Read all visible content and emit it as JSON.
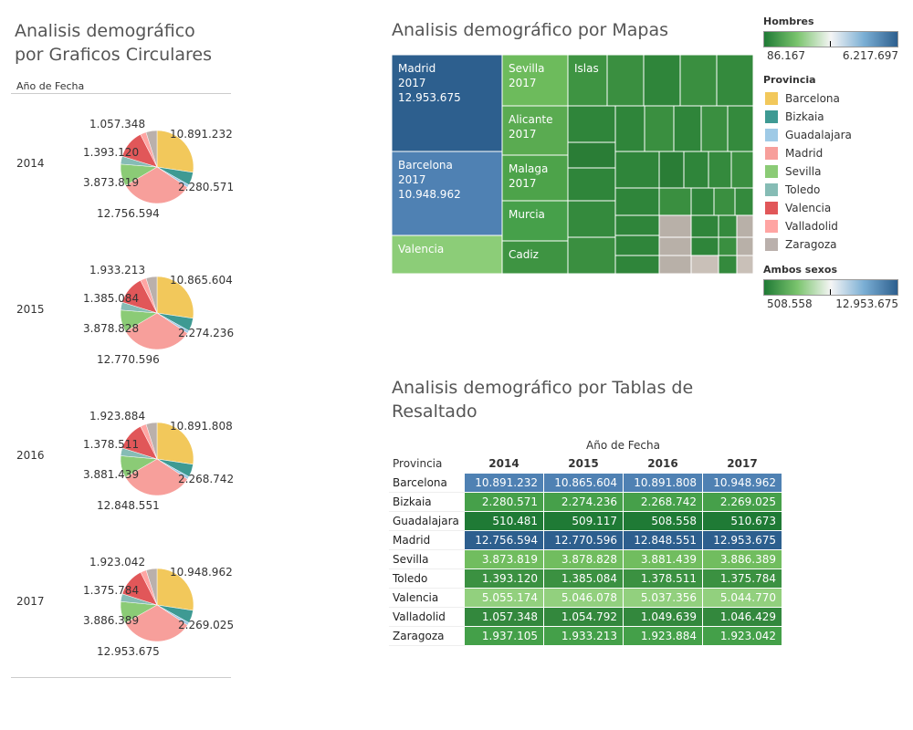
{
  "pie_panel": {
    "title_line1": "Analisis demográfico",
    "title_line2": "por Graficos Circulares",
    "header": "Año de Fecha"
  },
  "map_panel": {
    "title": "Analisis demográfico por Mapas"
  },
  "table_panel": {
    "title_line1": "Analisis demográfico por Tablas de",
    "title_line2": "Resaltado",
    "col_group_header": "Año de Fecha",
    "row_header": "Provincia"
  },
  "legend": {
    "hombres": {
      "title": "Hombres",
      "min": "86.167",
      "max": "6.217.697"
    },
    "provincia_title": "Provincia",
    "ambos": {
      "title": "Ambos sexos",
      "min": "508.558",
      "max": "12.953.675"
    },
    "categories": [
      {
        "name": "Barcelona",
        "color": "#f2c85b"
      },
      {
        "name": "Bizkaia",
        "color": "#3e9a93"
      },
      {
        "name": "Guadalajara",
        "color": "#9fcae6"
      },
      {
        "name": "Madrid",
        "color": "#f79f9b"
      },
      {
        "name": "Sevilla",
        "color": "#8bcb76"
      },
      {
        "name": "Toledo",
        "color": "#86bcb5"
      },
      {
        "name": "Valencia",
        "color": "#e15759"
      },
      {
        "name": "Valladolid",
        "color": "#ffa5a3"
      },
      {
        "name": "Zaragoza",
        "color": "#bab0ac"
      }
    ]
  },
  "chart_data": [
    {
      "type": "pie",
      "title": "Analisis demográfico por Graficos Circulares",
      "years": [
        "2014",
        "2015",
        "2016",
        "2017"
      ],
      "pies": [
        {
          "year": "2014",
          "slices": [
            {
              "name": "Barcelona",
              "value": 10891232
            },
            {
              "name": "Bizkaia",
              "value": 2280571
            },
            {
              "name": "Guadalajara",
              "value": 510481
            },
            {
              "name": "Madrid",
              "value": 12756594
            },
            {
              "name": "Sevilla",
              "value": 3873819
            },
            {
              "name": "Toledo",
              "value": 1393120
            },
            {
              "name": "Valencia",
              "value": 5055174
            },
            {
              "name": "Valladolid",
              "value": 1057348
            },
            {
              "name": "Zaragoza",
              "value": 1937105
            }
          ],
          "labels": {
            "Barcelona": "10.891.232",
            "Bizkaia": "2.280.571",
            "Madrid": "12.756.594",
            "Sevilla": "3.873.819",
            "Toledo": "1.393.120",
            "top": "1.057.348"
          }
        },
        {
          "year": "2015",
          "slices": [
            {
              "name": "Barcelona",
              "value": 10865604
            },
            {
              "name": "Bizkaia",
              "value": 2274236
            },
            {
              "name": "Guadalajara",
              "value": 509117
            },
            {
              "name": "Madrid",
              "value": 12770596
            },
            {
              "name": "Sevilla",
              "value": 3878828
            },
            {
              "name": "Toledo",
              "value": 1385084
            },
            {
              "name": "Valencia",
              "value": 5046078
            },
            {
              "name": "Valladolid",
              "value": 1054792
            },
            {
              "name": "Zaragoza",
              "value": 1933213
            }
          ],
          "labels": {
            "Barcelona": "10.865.604",
            "Bizkaia": "2.274.236",
            "Madrid": "12.770.596",
            "Sevilla": "3.878.828",
            "Toledo": "1.385.084",
            "top": "1.933.213"
          }
        },
        {
          "year": "2016",
          "slices": [
            {
              "name": "Barcelona",
              "value": 10891808
            },
            {
              "name": "Bizkaia",
              "value": 2268742
            },
            {
              "name": "Guadalajara",
              "value": 508558
            },
            {
              "name": "Madrid",
              "value": 12848551
            },
            {
              "name": "Sevilla",
              "value": 3881439
            },
            {
              "name": "Toledo",
              "value": 1378511
            },
            {
              "name": "Valencia",
              "value": 5037356
            },
            {
              "name": "Valladolid",
              "value": 1049639
            },
            {
              "name": "Zaragoza",
              "value": 1923884
            }
          ],
          "labels": {
            "Barcelona": "10.891.808",
            "Bizkaia": "2.268.742",
            "Madrid": "12.848.551",
            "Sevilla": "3.881.439",
            "Toledo": "1.378.511",
            "top": "1.923.884"
          }
        },
        {
          "year": "2017",
          "slices": [
            {
              "name": "Barcelona",
              "value": 10948962
            },
            {
              "name": "Bizkaia",
              "value": 2269025
            },
            {
              "name": "Guadalajara",
              "value": 510673
            },
            {
              "name": "Madrid",
              "value": 12953675
            },
            {
              "name": "Sevilla",
              "value": 3886389
            },
            {
              "name": "Toledo",
              "value": 1375784
            },
            {
              "name": "Valencia",
              "value": 5044770
            },
            {
              "name": "Valladolid",
              "value": 1046429
            },
            {
              "name": "Zaragoza",
              "value": 1923042
            }
          ],
          "labels": {
            "Barcelona": "10.948.962",
            "Bizkaia": "2.269.025",
            "Madrid": "12.953.675",
            "Sevilla": "3.886.389",
            "Toledo": "1.375.784",
            "top": "1.923.042"
          }
        }
      ]
    },
    {
      "type": "treemap",
      "title": "Analisis demográfico por Mapas",
      "color_measure": "Hombres",
      "cells": [
        {
          "name": "Madrid",
          "year": "2017",
          "value": 12953675,
          "label": "Madrid",
          "label2": "2017",
          "label3": "12.953.675"
        },
        {
          "name": "Barcelona",
          "year": "2017",
          "value": 10948962,
          "label": "Barcelona",
          "label2": "2017",
          "label3": "10.948.962"
        },
        {
          "name": "Valencia",
          "value": 5044770,
          "label": "Valencia"
        },
        {
          "name": "Sevilla",
          "year": "2017",
          "value": 3886389,
          "label": "Sevilla",
          "label2": "2017"
        },
        {
          "name": "Alicante",
          "year": "2017",
          "value": 1850000,
          "label": "Alicante",
          "label2": "2017"
        },
        {
          "name": "Malaga",
          "year": "2017",
          "value": 1630000,
          "label": "Malaga",
          "label2": "2017"
        },
        {
          "name": "Murcia",
          "value": 1470000,
          "label": "Murcia"
        },
        {
          "name": "Cadiz",
          "value": 1240000,
          "label": "Cadiz"
        },
        {
          "name": "Islas",
          "value": 1100000,
          "label": "Islas"
        }
      ]
    },
    {
      "type": "table",
      "title": "Analisis demográfico por Tablas de Resaltado",
      "columns": [
        "2014",
        "2015",
        "2016",
        "2017"
      ],
      "rows": [
        {
          "name": "Barcelona",
          "values": [
            "10.891.232",
            "10.865.604",
            "10.891.808",
            "10.948.962"
          ],
          "color": "#4f81b3"
        },
        {
          "name": "Bizkaia",
          "values": [
            "2.280.571",
            "2.274.236",
            "2.268.742",
            "2.269.025"
          ],
          "color": "#46a04a"
        },
        {
          "name": "Guadalajara",
          "values": [
            "510.481",
            "509.117",
            "508.558",
            "510.673"
          ],
          "color": "#1f7a35"
        },
        {
          "name": "Madrid",
          "values": [
            "12.756.594",
            "12.770.596",
            "12.848.551",
            "12.953.675"
          ],
          "color": "#2d5f8e"
        },
        {
          "name": "Sevilla",
          "values": [
            "3.873.819",
            "3.878.828",
            "3.881.439",
            "3.886.389"
          ],
          "color": "#71bd5f"
        },
        {
          "name": "Toledo",
          "values": [
            "1.393.120",
            "1.385.084",
            "1.378.511",
            "1.375.784"
          ],
          "color": "#3b9141"
        },
        {
          "name": "Valencia",
          "values": [
            "5.055.174",
            "5.046.078",
            "5.037.356",
            "5.044.770"
          ],
          "color": "#92d07e"
        },
        {
          "name": "Valladolid",
          "values": [
            "1.057.348",
            "1.054.792",
            "1.049.639",
            "1.046.429"
          ],
          "color": "#33883d"
        },
        {
          "name": "Zaragoza",
          "values": [
            "1.937.105",
            "1.933.213",
            "1.923.884",
            "1.923.042"
          ],
          "color": "#44a049"
        }
      ]
    }
  ]
}
